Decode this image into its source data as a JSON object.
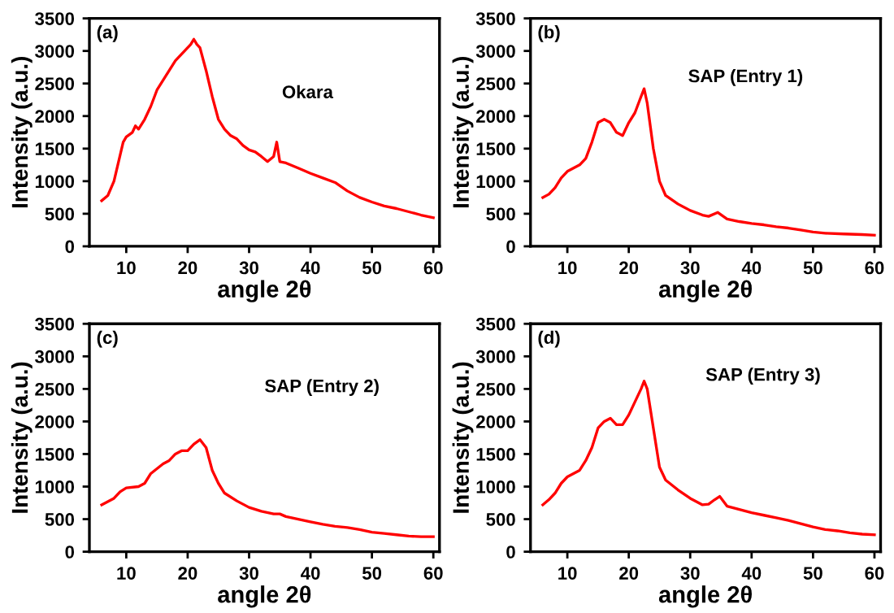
{
  "chart_data": [
    {
      "type": "line",
      "title": "(a)",
      "xlabel": "angle 2θ",
      "ylabel": "Intensity (a.u.)",
      "annotations": [
        "Okara"
      ],
      "xlim": [
        4,
        61
      ],
      "ylim": [
        0,
        3500
      ],
      "xticks": [
        10,
        20,
        30,
        40,
        50,
        60
      ],
      "yticks": [
        0,
        500,
        1000,
        1500,
        2000,
        2500,
        3000,
        3500
      ],
      "grid": false,
      "legend": false,
      "series": [
        {
          "color": "#ff0000",
          "x": [
            6,
            7,
            8,
            9,
            9.5,
            10,
            11,
            11.5,
            12,
            13,
            14,
            15,
            16,
            17,
            18,
            19,
            20,
            20.5,
            21,
            21.5,
            22,
            23,
            24,
            25,
            26,
            27,
            28,
            29,
            30,
            31,
            32,
            33,
            34,
            34.5,
            35,
            36,
            38,
            40,
            42,
            44,
            46,
            48,
            50,
            52,
            54,
            56,
            58,
            60
          ],
          "values": [
            700,
            780,
            1000,
            1400,
            1600,
            1680,
            1750,
            1850,
            1800,
            1950,
            2150,
            2400,
            2550,
            2700,
            2850,
            2950,
            3050,
            3100,
            3180,
            3100,
            3050,
            2700,
            2300,
            1950,
            1800,
            1700,
            1650,
            1550,
            1480,
            1450,
            1380,
            1300,
            1380,
            1600,
            1300,
            1280,
            1200,
            1120,
            1050,
            980,
            850,
            750,
            680,
            620,
            580,
            530,
            480,
            440
          ]
        }
      ]
    },
    {
      "type": "line",
      "title": "(b)",
      "xlabel": "angle 2θ",
      "ylabel": "Intensity (a.u.)",
      "annotations": [
        "SAP (Entry 1)"
      ],
      "xlim": [
        4,
        61
      ],
      "ylim": [
        0,
        3500
      ],
      "xticks": [
        10,
        20,
        30,
        40,
        50,
        60
      ],
      "yticks": [
        0,
        500,
        1000,
        1500,
        2000,
        2500,
        3000,
        3500
      ],
      "grid": false,
      "legend": false,
      "series": [
        {
          "color": "#ff0000",
          "x": [
            6,
            7,
            8,
            9,
            10,
            11,
            12,
            13,
            14,
            15,
            16,
            17,
            18,
            19,
            20,
            21,
            22,
            22.5,
            23,
            24,
            25,
            26,
            28,
            30,
            32,
            33,
            34.5,
            36,
            38,
            40,
            42,
            44,
            46,
            48,
            50,
            52,
            55,
            58,
            60
          ],
          "values": [
            750,
            800,
            900,
            1050,
            1150,
            1200,
            1250,
            1350,
            1600,
            1900,
            1950,
            1900,
            1750,
            1700,
            1900,
            2050,
            2300,
            2420,
            2200,
            1500,
            1000,
            780,
            650,
            550,
            480,
            460,
            520,
            420,
            380,
            350,
            330,
            300,
            280,
            250,
            220,
            200,
            190,
            180,
            170
          ]
        }
      ]
    },
    {
      "type": "line",
      "title": "(c)",
      "xlabel": "angle 2θ",
      "ylabel": "Intensity (a.u.)",
      "annotations": [
        "SAP (Entry 2)"
      ],
      "xlim": [
        4,
        61
      ],
      "ylim": [
        0,
        3500
      ],
      "xticks": [
        10,
        20,
        30,
        40,
        50,
        60
      ],
      "yticks": [
        0,
        500,
        1000,
        1500,
        2000,
        2500,
        3000,
        3500
      ],
      "grid": false,
      "legend": false,
      "series": [
        {
          "color": "#ff0000",
          "x": [
            6,
            8,
            9,
            10,
            12,
            13,
            14,
            16,
            17,
            18,
            19,
            20,
            21,
            22,
            23,
            24,
            25,
            26,
            28,
            30,
            32,
            34,
            35,
            36,
            38,
            40,
            42,
            44,
            46,
            48,
            50,
            52,
            54,
            56,
            58,
            60
          ],
          "values": [
            720,
            820,
            920,
            980,
            1000,
            1050,
            1200,
            1350,
            1400,
            1500,
            1550,
            1550,
            1650,
            1720,
            1600,
            1250,
            1050,
            900,
            780,
            680,
            620,
            580,
            580,
            540,
            500,
            460,
            420,
            390,
            370,
            340,
            300,
            280,
            260,
            240,
            230,
            230
          ]
        }
      ]
    },
    {
      "type": "line",
      "title": "(d)",
      "xlabel": "angle 2θ",
      "ylabel": "Intensity (a.u.)",
      "annotations": [
        "SAP (Entry 3)"
      ],
      "xlim": [
        4,
        61
      ],
      "ylim": [
        0,
        3500
      ],
      "xticks": [
        10,
        20,
        30,
        40,
        50,
        60
      ],
      "yticks": [
        0,
        500,
        1000,
        1500,
        2000,
        2500,
        3000,
        3500
      ],
      "grid": false,
      "legend": false,
      "series": [
        {
          "color": "#ff0000",
          "x": [
            6,
            7,
            8,
            9,
            10,
            11,
            12,
            13,
            14,
            15,
            16,
            17,
            18,
            19,
            20,
            21,
            22,
            22.5,
            23,
            24,
            25,
            26,
            28,
            30,
            32,
            33,
            34,
            34.8,
            36,
            38,
            40,
            42,
            44,
            46,
            48,
            50,
            52,
            54,
            56,
            58,
            60
          ],
          "values": [
            720,
            800,
            900,
            1050,
            1150,
            1200,
            1250,
            1400,
            1600,
            1900,
            2000,
            2050,
            1950,
            1950,
            2100,
            2300,
            2500,
            2620,
            2500,
            1900,
            1300,
            1100,
            950,
            820,
            720,
            730,
            800,
            850,
            700,
            650,
            600,
            560,
            520,
            480,
            430,
            380,
            340,
            320,
            290,
            270,
            260
          ]
        }
      ]
    }
  ]
}
